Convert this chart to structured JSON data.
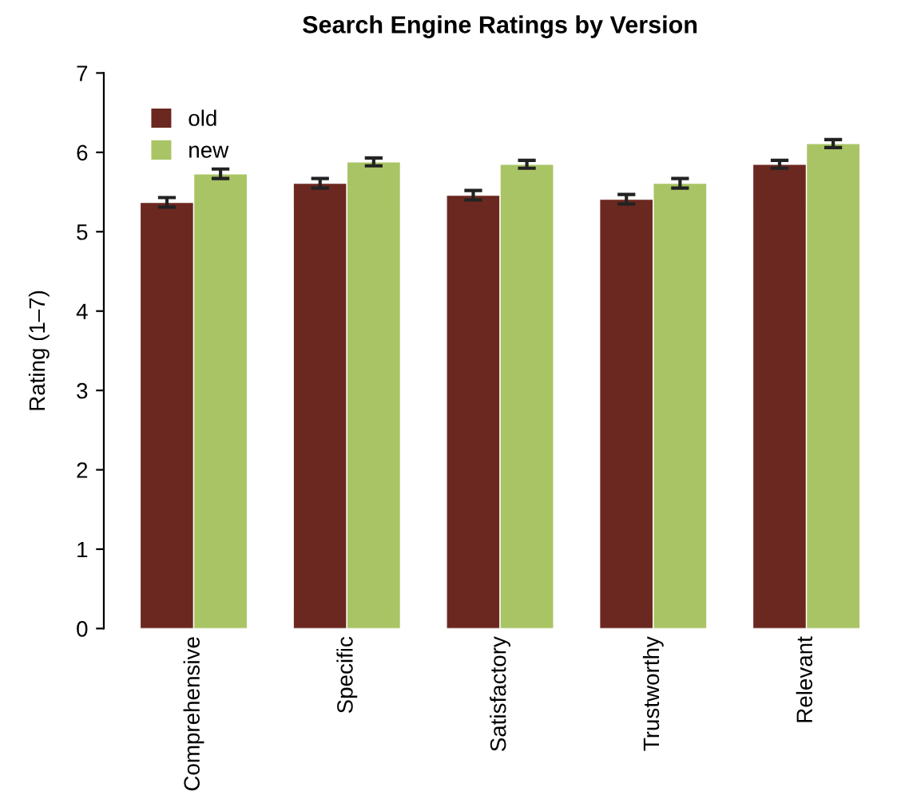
{
  "chart_data": {
    "type": "bar",
    "title": "Search Engine Ratings by Version",
    "ylabel": "Rating (1–7)",
    "categories": [
      "Comprehensive",
      "Specific",
      "Satisfactory",
      "Trustworthy",
      "Relevant"
    ],
    "series": [
      {
        "name": "old",
        "color": "#6b2820",
        "values": [
          5.37,
          5.61,
          5.46,
          5.41,
          5.85
        ],
        "errors": [
          0.06,
          0.06,
          0.06,
          0.06,
          0.05
        ]
      },
      {
        "name": "new",
        "color": "#a9c465",
        "values": [
          5.73,
          5.88,
          5.85,
          5.61,
          6.11
        ],
        "errors": [
          0.06,
          0.05,
          0.05,
          0.06,
          0.05
        ]
      }
    ],
    "ylim": [
      0,
      7
    ],
    "yticks": [
      0,
      1,
      2,
      3,
      4,
      5,
      6,
      7
    ],
    "grid": false,
    "legend": "top left"
  }
}
